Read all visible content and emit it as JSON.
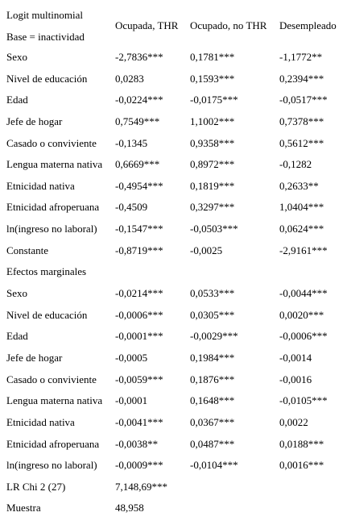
{
  "header": {
    "line1": "Logit multinomial",
    "line2": "Base = inactividad",
    "columns": [
      "Ocupada, THR",
      "Ocupado, no THR",
      "Desempleado"
    ]
  },
  "rows": [
    {
      "label": "Sexo",
      "v": [
        "-2,7836***",
        "0,1781***",
        "-1,1772**"
      ]
    },
    {
      "label": "Nivel de educación",
      "v": [
        "0,0283",
        "0,1593***",
        "0,2394***"
      ]
    },
    {
      "label": "Edad",
      "v": [
        "-0,0224***",
        "-0,0175***",
        "-0,0517***"
      ]
    },
    {
      "label": "Jefe de hogar",
      "v": [
        "0,7549***",
        "1,1002***",
        "0,7378***"
      ]
    },
    {
      "label": "Casado o conviviente",
      "v": [
        "-0,1345",
        "0,9358***",
        "0,5612***"
      ]
    },
    {
      "label": "Lengua materna nativa",
      "v": [
        "0,6669***",
        "0,8972***",
        "-0,1282"
      ]
    },
    {
      "label": "Etnicidad nativa",
      "v": [
        "-0,4954***",
        "0,1819***",
        "0,2633**"
      ]
    },
    {
      "label": "Etnicidad afroperuana",
      "v": [
        "-0,4509",
        "0,3297***",
        "1,0404***"
      ]
    },
    {
      "label": "ln(ingreso no laboral)",
      "v": [
        "-0,1547***",
        "-0,0503***",
        "0,0624***"
      ]
    },
    {
      "label": "Constante",
      "v": [
        "-0,8719***",
        "-0,0025",
        "-2,9161***"
      ]
    },
    {
      "label": "Efectos marginales",
      "v": [
        "",
        "",
        ""
      ]
    },
    {
      "label": "Sexo",
      "v": [
        "-0,0214***",
        "0,0533***",
        "-0,0044***"
      ]
    },
    {
      "label": "Nivel de educación",
      "v": [
        "-0,0006***",
        "0,0305***",
        "0,0020***"
      ]
    },
    {
      "label": "Edad",
      "v": [
        "-0,0001***",
        "-0,0029***",
        "-0,0006***"
      ]
    },
    {
      "label": "Jefe de hogar",
      "v": [
        "-0,0005",
        "0,1984***",
        "-0,0014"
      ]
    },
    {
      "label": "Casado o conviviente",
      "v": [
        "-0,0059***",
        "0,1876***",
        "-0,0016"
      ]
    },
    {
      "label": "Lengua materna nativa",
      "v": [
        "-0,0001",
        "0,1648***",
        "-0,0105***"
      ]
    },
    {
      "label": "Etnicidad nativa",
      "v": [
        "-0,0041***",
        "0,0367***",
        "0,0022"
      ]
    },
    {
      "label": "Etnicidad afroperuana",
      "v": [
        "-0,0038**",
        "0,0487***",
        "0,0188***"
      ]
    },
    {
      "label": "ln(ingreso no laboral)",
      "v": [
        "-0,0009***",
        "-0,0104***",
        "0,0016***"
      ]
    },
    {
      "label": "LR Chi 2 (27)",
      "v": [
        "7,148,69***",
        "",
        ""
      ]
    },
    {
      "label": "Muestra",
      "v": [
        "48,958",
        "",
        ""
      ]
    }
  ]
}
